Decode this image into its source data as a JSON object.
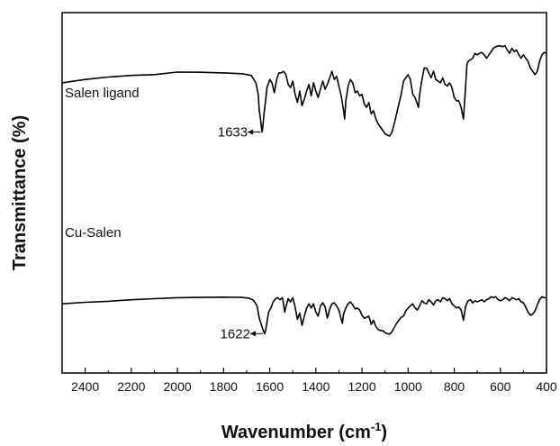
{
  "chart_data": {
    "type": "line",
    "xlabel": "Wavenumber (cm",
    "xlabel_sup": "-1",
    "xlabel_close": ")",
    "ylabel": "Transmittance (%)",
    "xlim": [
      2500,
      400
    ],
    "x_reversed": true,
    "ylim": [
      0,
      100
    ],
    "yticks_shown": false,
    "xticks": [
      2400,
      2200,
      2000,
      1800,
      1600,
      1400,
      1200,
      1000,
      800,
      600,
      400
    ],
    "xtick_labels": [
      "2400",
      "2200",
      "2000",
      "1800",
      "1600",
      "1400",
      "1200",
      "1000",
      "800",
      "600",
      "400"
    ],
    "grid": false,
    "series": [
      {
        "name": "Salen ligand",
        "color": "#000000",
        "points": [
          [
            2500,
            77
          ],
          [
            2400,
            79
          ],
          [
            2300,
            80.5
          ],
          [
            2200,
            81.5
          ],
          [
            2100,
            82
          ],
          [
            2000,
            83.5
          ],
          [
            1900,
            83.4
          ],
          [
            1800,
            83
          ],
          [
            1720,
            82.5
          ],
          [
            1680,
            81.5
          ],
          [
            1660,
            77
          ],
          [
            1650,
            70
          ],
          [
            1645,
            60
          ],
          [
            1640,
            55
          ],
          [
            1636,
            50
          ],
          [
            1633,
            47
          ],
          [
            1630,
            50
          ],
          [
            1625,
            58
          ],
          [
            1618,
            66
          ],
          [
            1612,
            74
          ],
          [
            1600,
            79
          ],
          [
            1590,
            77
          ],
          [
            1580,
            71
          ],
          [
            1570,
            79
          ],
          [
            1560,
            83
          ],
          [
            1550,
            83
          ],
          [
            1540,
            84
          ],
          [
            1530,
            82
          ],
          [
            1520,
            76
          ],
          [
            1510,
            74
          ],
          [
            1500,
            78
          ],
          [
            1490,
            70
          ],
          [
            1480,
            65
          ],
          [
            1470,
            72
          ],
          [
            1460,
            63
          ],
          [
            1450,
            67
          ],
          [
            1440,
            72
          ],
          [
            1430,
            76
          ],
          [
            1420,
            69
          ],
          [
            1410,
            77
          ],
          [
            1400,
            72
          ],
          [
            1390,
            68
          ],
          [
            1380,
            73
          ],
          [
            1370,
            78
          ],
          [
            1360,
            73
          ],
          [
            1350,
            76
          ],
          [
            1340,
            80
          ],
          [
            1330,
            84
          ],
          [
            1320,
            79
          ],
          [
            1310,
            81
          ],
          [
            1300,
            75
          ],
          [
            1290,
            69
          ],
          [
            1280,
            60
          ],
          [
            1275,
            55
          ],
          [
            1270,
            66
          ],
          [
            1260,
            75
          ],
          [
            1250,
            79
          ],
          [
            1240,
            77
          ],
          [
            1230,
            71
          ],
          [
            1220,
            72
          ],
          [
            1210,
            69
          ],
          [
            1200,
            70
          ],
          [
            1190,
            64
          ],
          [
            1180,
            62
          ],
          [
            1170,
            65
          ],
          [
            1160,
            58
          ],
          [
            1150,
            60
          ],
          [
            1140,
            55
          ],
          [
            1130,
            52
          ],
          [
            1120,
            50
          ],
          [
            1110,
            48
          ],
          [
            1100,
            46
          ],
          [
            1090,
            45
          ],
          [
            1080,
            44.5
          ],
          [
            1070,
            47
          ],
          [
            1060,
            52
          ],
          [
            1050,
            58
          ],
          [
            1040,
            64
          ],
          [
            1030,
            70
          ],
          [
            1020,
            78
          ],
          [
            1010,
            80
          ],
          [
            1000,
            82
          ],
          [
            990,
            79
          ],
          [
            980,
            70
          ],
          [
            970,
            68
          ],
          [
            960,
            64
          ],
          [
            955,
            62
          ],
          [
            950,
            70
          ],
          [
            940,
            79
          ],
          [
            930,
            86
          ],
          [
            920,
            86
          ],
          [
            910,
            83
          ],
          [
            900,
            80
          ],
          [
            890,
            84
          ],
          [
            880,
            79
          ],
          [
            870,
            78
          ],
          [
            860,
            77
          ],
          [
            850,
            80
          ],
          [
            840,
            76
          ],
          [
            830,
            75
          ],
          [
            820,
            77
          ],
          [
            810,
            74
          ],
          [
            800,
            68
          ],
          [
            790,
            66
          ],
          [
            780,
            66
          ],
          [
            775,
            64
          ],
          [
            770,
            62
          ],
          [
            765,
            58
          ],
          [
            760,
            55
          ],
          [
            755,
            66
          ],
          [
            750,
            76
          ],
          [
            745,
            88
          ],
          [
            740,
            90
          ],
          [
            730,
            91
          ],
          [
            720,
            92
          ],
          [
            710,
            95
          ],
          [
            700,
            94
          ],
          [
            690,
            95
          ],
          [
            680,
            95.5
          ],
          [
            670,
            94
          ],
          [
            660,
            92
          ],
          [
            650,
            94
          ],
          [
            640,
            96
          ],
          [
            630,
            98
          ],
          [
            620,
            99
          ],
          [
            610,
            99.5
          ],
          [
            600,
            99.5
          ],
          [
            590,
            99
          ],
          [
            580,
            99.6
          ],
          [
            570,
            97
          ],
          [
            560,
            95
          ],
          [
            550,
            98
          ],
          [
            540,
            96
          ],
          [
            530,
            97
          ],
          [
            520,
            94
          ],
          [
            510,
            92
          ],
          [
            500,
            94
          ],
          [
            490,
            92
          ],
          [
            480,
            90
          ],
          [
            470,
            86
          ],
          [
            460,
            84
          ],
          [
            450,
            82
          ],
          [
            440,
            84
          ],
          [
            430,
            90
          ],
          [
            420,
            94
          ],
          [
            410,
            95.5
          ],
          [
            400,
            95
          ]
        ]
      },
      {
        "name": "Cu-Salen",
        "color": "#000000",
        "points": [
          [
            2500,
            34
          ],
          [
            2400,
            35.5
          ],
          [
            2300,
            36.5
          ],
          [
            2200,
            38
          ],
          [
            2100,
            39
          ],
          [
            2000,
            40
          ],
          [
            1900,
            40.3
          ],
          [
            1800,
            40.5
          ],
          [
            1720,
            40.3
          ],
          [
            1690,
            39.5
          ],
          [
            1670,
            37.5
          ],
          [
            1655,
            32
          ],
          [
            1645,
            20
          ],
          [
            1635,
            13
          ],
          [
            1628,
            8
          ],
          [
            1622,
            5
          ],
          [
            1618,
            8
          ],
          [
            1612,
            16
          ],
          [
            1605,
            26
          ],
          [
            1595,
            30
          ],
          [
            1585,
            36
          ],
          [
            1575,
            39
          ],
          [
            1565,
            40
          ],
          [
            1555,
            38
          ],
          [
            1545,
            40
          ],
          [
            1540,
            34
          ],
          [
            1535,
            26
          ],
          [
            1530,
            31
          ],
          [
            1520,
            39
          ],
          [
            1510,
            36
          ],
          [
            1500,
            40
          ],
          [
            1490,
            31
          ],
          [
            1480,
            19
          ],
          [
            1470,
            25
          ],
          [
            1460,
            13
          ],
          [
            1450,
            22
          ],
          [
            1440,
            30
          ],
          [
            1430,
            34
          ],
          [
            1420,
            30
          ],
          [
            1410,
            34
          ],
          [
            1400,
            26
          ],
          [
            1390,
            22
          ],
          [
            1380,
            32
          ],
          [
            1370,
            35
          ],
          [
            1360,
            31
          ],
          [
            1350,
            20
          ],
          [
            1340,
            29
          ],
          [
            1330,
            34
          ],
          [
            1320,
            35
          ],
          [
            1310,
            32
          ],
          [
            1300,
            28
          ],
          [
            1290,
            19
          ],
          [
            1285,
            15
          ],
          [
            1280,
            24
          ],
          [
            1270,
            30
          ],
          [
            1260,
            34
          ],
          [
            1250,
            36
          ],
          [
            1240,
            33
          ],
          [
            1230,
            29
          ],
          [
            1220,
            30
          ],
          [
            1210,
            28
          ],
          [
            1200,
            23
          ],
          [
            1190,
            20
          ],
          [
            1180,
            21
          ],
          [
            1170,
            22
          ],
          [
            1160,
            14
          ],
          [
            1150,
            18
          ],
          [
            1140,
            12
          ],
          [
            1130,
            9
          ],
          [
            1120,
            8
          ],
          [
            1110,
            8
          ],
          [
            1100,
            6
          ],
          [
            1090,
            5
          ],
          [
            1080,
            4.5
          ],
          [
            1070,
            7
          ],
          [
            1060,
            11
          ],
          [
            1050,
            15
          ],
          [
            1040,
            18
          ],
          [
            1030,
            21
          ],
          [
            1020,
            22
          ],
          [
            1010,
            27
          ],
          [
            1000,
            30
          ],
          [
            990,
            32
          ],
          [
            980,
            34
          ],
          [
            970,
            30
          ],
          [
            960,
            28
          ],
          [
            950,
            32
          ],
          [
            940,
            37
          ],
          [
            930,
            35
          ],
          [
            920,
            34
          ],
          [
            910,
            38
          ],
          [
            900,
            36
          ],
          [
            890,
            33
          ],
          [
            880,
            37
          ],
          [
            870,
            38
          ],
          [
            860,
            36
          ],
          [
            850,
            40
          ],
          [
            840,
            39
          ],
          [
            830,
            37
          ],
          [
            820,
            39
          ],
          [
            810,
            34
          ],
          [
            800,
            32
          ],
          [
            790,
            30
          ],
          [
            780,
            31
          ],
          [
            770,
            28
          ],
          [
            765,
            23
          ],
          [
            760,
            18
          ],
          [
            755,
            26
          ],
          [
            750,
            32
          ],
          [
            740,
            37
          ],
          [
            730,
            38
          ],
          [
            720,
            35
          ],
          [
            710,
            37
          ],
          [
            700,
            36
          ],
          [
            690,
            37
          ],
          [
            680,
            38
          ],
          [
            670,
            36
          ],
          [
            660,
            38
          ],
          [
            650,
            39
          ],
          [
            640,
            41
          ],
          [
            630,
            40
          ],
          [
            620,
            41
          ],
          [
            610,
            38
          ],
          [
            600,
            37
          ],
          [
            590,
            38
          ],
          [
            580,
            40
          ],
          [
            570,
            39
          ],
          [
            560,
            37
          ],
          [
            550,
            40
          ],
          [
            540,
            39
          ],
          [
            530,
            38
          ],
          [
            520,
            39
          ],
          [
            510,
            36
          ],
          [
            500,
            35
          ],
          [
            490,
            31
          ],
          [
            480,
            26
          ],
          [
            470,
            23
          ],
          [
            460,
            24
          ],
          [
            450,
            27
          ],
          [
            440,
            33
          ],
          [
            430,
            38
          ],
          [
            420,
            41
          ],
          [
            410,
            40
          ],
          [
            400,
            40
          ]
        ]
      }
    ],
    "annotations": [
      {
        "label": "1633",
        "x": 1633,
        "y": 47,
        "arrow": "right"
      },
      {
        "label": "1622",
        "x": 1622,
        "y": 5,
        "arrow": "right"
      }
    ]
  }
}
